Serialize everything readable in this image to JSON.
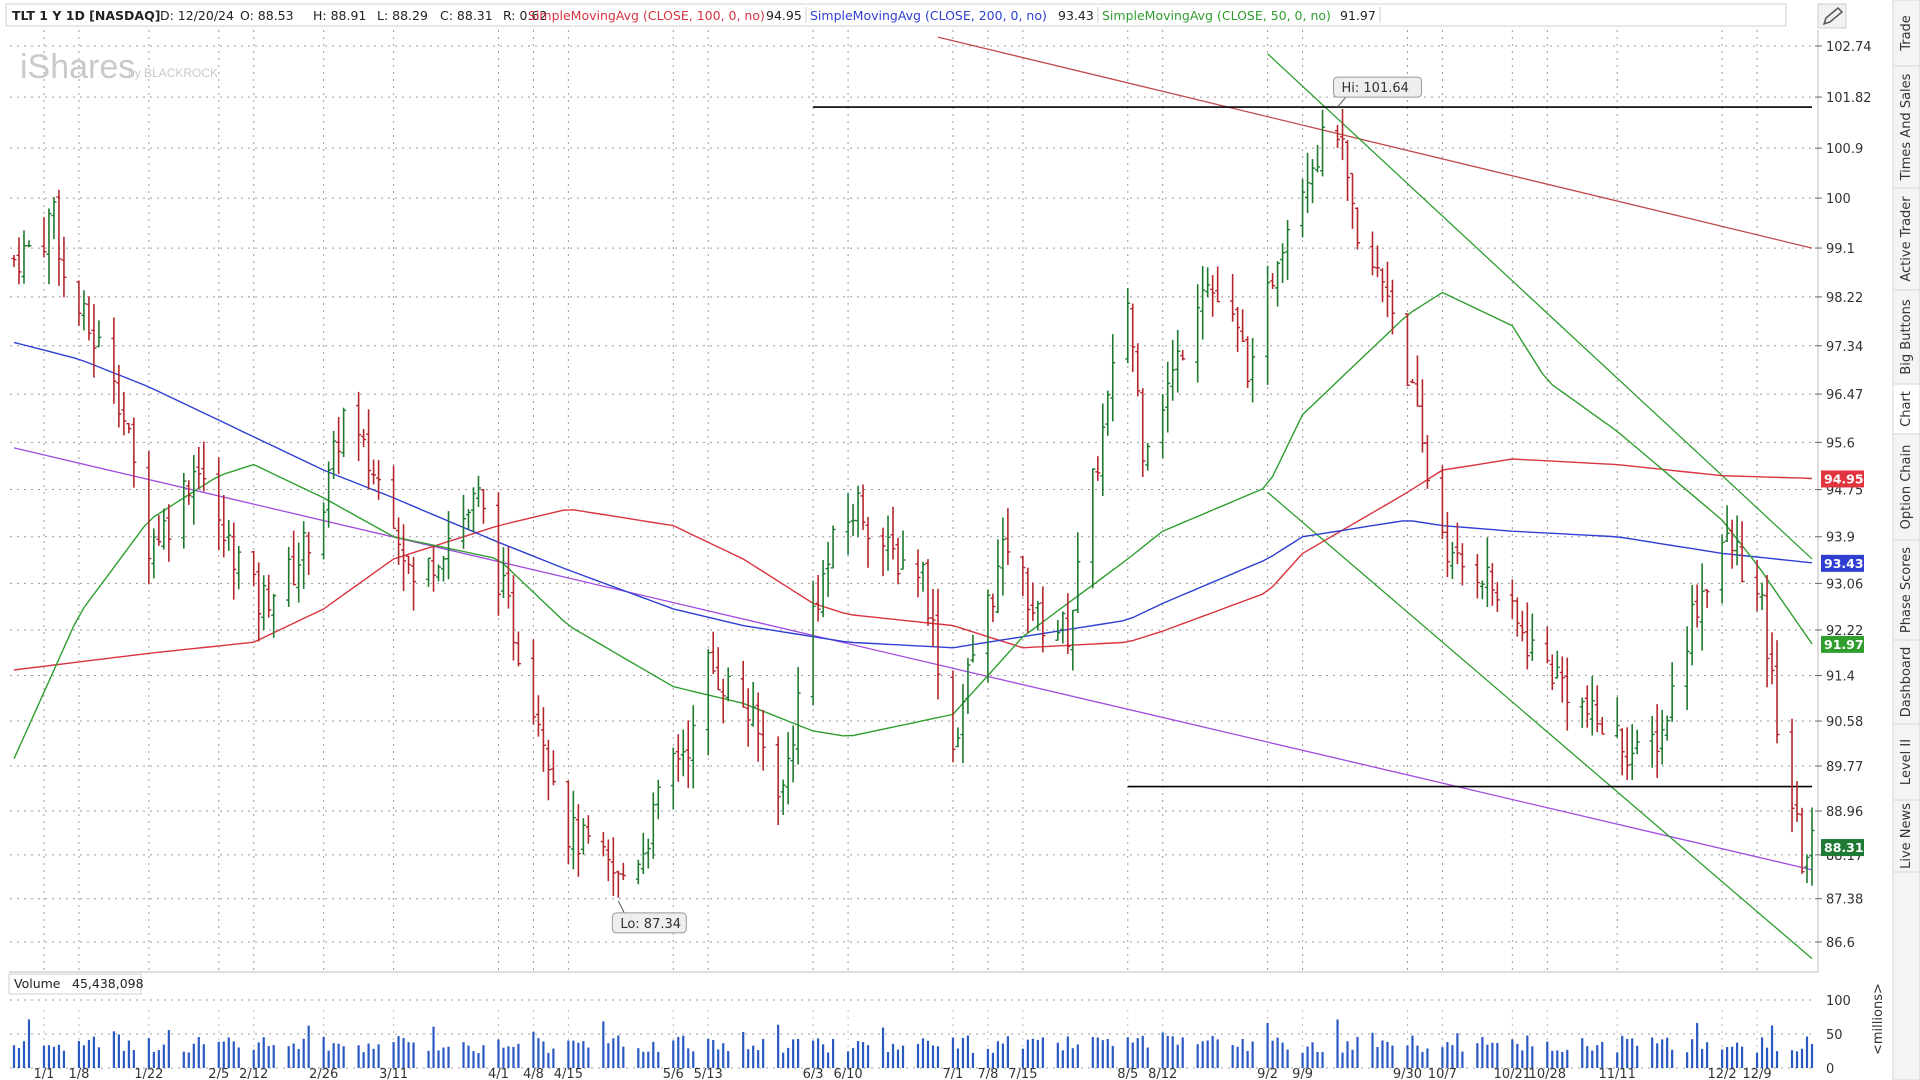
{
  "header": {
    "symbol": "TLT 1 Y 1D [NASDAQ]",
    "date": "D: 12/20/24",
    "open": "O: 88.53",
    "high": "H: 88.91",
    "low": "L: 88.29",
    "close": "C: 88.31",
    "range": "R: 0.62",
    "studies": [
      {
        "label": "SimpleMovingAvg (CLOSE, 100, 0, no)",
        "value": "94.95",
        "color": "#d9343f"
      },
      {
        "label": "SimpleMovingAvg (CLOSE, 200, 0, no)",
        "value": "93.43",
        "color": "#2e3fd1"
      },
      {
        "label": "SimpleMovingAvg (CLOSE, 50, 0, no)",
        "value": "91.97",
        "color": "#2f9e2f"
      }
    ],
    "settings_icon": "pencil-icon"
  },
  "watermark": {
    "main": "iShares",
    "sub": "by BLACKROCK"
  },
  "side_tabs": [
    "Trade",
    "Times And Sales",
    "Active Trader",
    "Big Buttons",
    "Chart",
    "Option Chain",
    "Phase Scores",
    "Dashboard",
    "Level II",
    "Live News"
  ],
  "active_tab": "Chart",
  "volume_panel": {
    "label": "Volume",
    "value": "45,438,098",
    "unit": "<millions>",
    "ticks": [
      "100",
      "50",
      "0"
    ]
  },
  "annotations": {
    "hi": "Hi: 101.64",
    "lo": "Lo: 87.34"
  },
  "chart_data": {
    "type": "ohlc",
    "title": "TLT 1 Y 1D [NASDAQ]",
    "y_ticks": [
      "102.74",
      "101.82",
      "100.9",
      "100",
      "99.1",
      "98.22",
      "97.34",
      "96.47",
      "95.6",
      "94.75",
      "93.9",
      "93.06",
      "92.22",
      "91.4",
      "90.58",
      "89.77",
      "88.96",
      "88.17",
      "87.38",
      "86.6"
    ],
    "x_ticks": [
      {
        "label": "1/1",
        "date": "2024-01-01"
      },
      {
        "label": "1/8",
        "date": "2024-01-08"
      },
      {
        "label": "1/22",
        "date": "2024-01-22"
      },
      {
        "label": "2/5",
        "date": "2024-02-05"
      },
      {
        "label": "2/12",
        "date": "2024-02-12"
      },
      {
        "label": "2/26",
        "date": "2024-02-26"
      },
      {
        "label": "3/11",
        "date": "2024-03-11"
      },
      {
        "label": "4/1",
        "date": "2024-04-01"
      },
      {
        "label": "4/8",
        "date": "2024-04-08"
      },
      {
        "label": "4/15",
        "date": "2024-04-15"
      },
      {
        "label": "5/6",
        "date": "2024-05-06"
      },
      {
        "label": "5/13",
        "date": "2024-05-13"
      },
      {
        "label": "6/3",
        "date": "2024-06-03"
      },
      {
        "label": "6/10",
        "date": "2024-06-10"
      },
      {
        "label": "7/1",
        "date": "2024-07-01"
      },
      {
        "label": "7/8",
        "date": "2024-07-08"
      },
      {
        "label": "7/15",
        "date": "2024-07-15"
      },
      {
        "label": "8/5",
        "date": "2024-08-05"
      },
      {
        "label": "8/12",
        "date": "2024-08-12"
      },
      {
        "label": "9/2",
        "date": "2024-09-02"
      },
      {
        "label": "9/9",
        "date": "2024-09-09"
      },
      {
        "label": "9/30",
        "date": "2024-09-30"
      },
      {
        "label": "10/7",
        "date": "2024-10-07"
      },
      {
        "label": "10/21",
        "date": "2024-10-21"
      },
      {
        "label": "10/28",
        "date": "2024-10-28"
      },
      {
        "label": "11/11",
        "date": "2024-11-11"
      },
      {
        "label": "12/2",
        "date": "2024-12-02"
      },
      {
        "label": "12/9",
        "date": "2024-12-09"
      }
    ],
    "date_range": [
      "2023-12-26",
      "2024-12-20"
    ],
    "ohlc_path": [
      [
        "2023-12-26",
        98.9
      ],
      [
        "2024-01-01",
        99.3
      ],
      [
        "2024-01-03",
        99.9
      ],
      [
        "2024-01-05",
        98.5
      ],
      [
        "2024-01-10",
        97.6
      ],
      [
        "2024-01-15",
        96.9
      ],
      [
        "2024-01-22",
        93.8
      ],
      [
        "2024-01-26",
        94.2
      ],
      [
        "2024-02-01",
        95.3
      ],
      [
        "2024-02-05",
        94.0
      ],
      [
        "2024-02-09",
        93.5
      ],
      [
        "2024-02-13",
        92.7
      ],
      [
        "2024-02-20",
        93.3
      ],
      [
        "2024-02-26",
        94.5
      ],
      [
        "2024-03-01",
        96.1
      ],
      [
        "2024-03-06",
        95.2
      ],
      [
        "2024-03-11",
        94.4
      ],
      [
        "2024-03-15",
        93.0
      ],
      [
        "2024-03-22",
        93.9
      ],
      [
        "2024-03-28",
        94.6
      ],
      [
        "2024-04-01",
        93.2
      ],
      [
        "2024-04-05",
        91.9
      ],
      [
        "2024-04-10",
        90.4
      ],
      [
        "2024-04-15",
        88.6
      ],
      [
        "2024-04-19",
        88.3
      ],
      [
        "2024-04-25",
        87.7
      ],
      [
        "2024-04-30",
        88.3
      ],
      [
        "2024-05-06",
        89.9
      ],
      [
        "2024-05-10",
        90.3
      ],
      [
        "2024-05-13",
        91.6
      ],
      [
        "2024-05-20",
        90.9
      ],
      [
        "2024-05-28",
        89.3
      ],
      [
        "2024-06-03",
        92.6
      ],
      [
        "2024-06-07",
        93.7
      ],
      [
        "2024-06-12",
        94.5
      ],
      [
        "2024-06-18",
        93.6
      ],
      [
        "2024-06-25",
        93.3
      ],
      [
        "2024-07-01",
        90.1
      ],
      [
        "2024-07-05",
        91.8
      ],
      [
        "2024-07-12",
        93.8
      ],
      [
        "2024-07-18",
        92.4
      ],
      [
        "2024-07-24",
        92.2
      ],
      [
        "2024-07-30",
        95.3
      ],
      [
        "2024-08-05",
        98.2
      ],
      [
        "2024-08-08",
        95.6
      ],
      [
        "2024-08-14",
        96.8
      ],
      [
        "2024-08-20",
        98.6
      ],
      [
        "2024-08-26",
        97.7
      ],
      [
        "2024-08-30",
        96.8
      ],
      [
        "2024-09-04",
        99.1
      ],
      [
        "2024-09-10",
        100.6
      ],
      [
        "2024-09-16",
        101.3
      ],
      [
        "2024-09-20",
        99.0
      ],
      [
        "2024-09-26",
        98.4
      ],
      [
        "2024-09-30",
        96.9
      ],
      [
        "2024-10-04",
        95.0
      ],
      [
        "2024-10-09",
        93.4
      ],
      [
        "2024-10-15",
        93.3
      ],
      [
        "2024-10-21",
        92.4
      ],
      [
        "2024-10-25",
        91.9
      ],
      [
        "2024-10-31",
        91.3
      ],
      [
        "2024-11-06",
        90.6
      ],
      [
        "2024-11-11",
        90.3
      ],
      [
        "2024-11-15",
        89.9
      ],
      [
        "2024-11-20",
        90.4
      ],
      [
        "2024-11-26",
        92.5
      ],
      [
        "2024-12-02",
        93.8
      ],
      [
        "2024-12-05",
        93.6
      ],
      [
        "2024-12-10",
        92.5
      ],
      [
        "2024-12-13",
        90.6
      ],
      [
        "2024-12-18",
        88.1
      ],
      [
        "2024-12-20",
        88.31
      ]
    ],
    "sma50_path": [
      [
        "2023-12-26",
        89.9
      ],
      [
        "2024-01-08",
        92.5
      ],
      [
        "2024-01-22",
        94.2
      ],
      [
        "2024-02-05",
        95.0
      ],
      [
        "2024-02-12",
        95.2
      ],
      [
        "2024-02-26",
        94.6
      ],
      [
        "2024-03-11",
        93.9
      ],
      [
        "2024-04-01",
        93.5
      ],
      [
        "2024-04-15",
        92.3
      ],
      [
        "2024-05-06",
        91.2
      ],
      [
        "2024-05-20",
        90.9
      ],
      [
        "2024-06-03",
        90.4
      ],
      [
        "2024-06-10",
        90.3
      ],
      [
        "2024-07-01",
        90.7
      ],
      [
        "2024-07-15",
        92.1
      ],
      [
        "2024-08-05",
        93.5
      ],
      [
        "2024-08-12",
        94.0
      ],
      [
        "2024-09-02",
        94.8
      ],
      [
        "2024-09-09",
        96.1
      ],
      [
        "2024-09-30",
        97.9
      ],
      [
        "2024-10-07",
        98.3
      ],
      [
        "2024-10-21",
        97.7
      ],
      [
        "2024-10-28",
        96.7
      ],
      [
        "2024-11-11",
        95.8
      ],
      [
        "2024-12-02",
        94.2
      ],
      [
        "2024-12-09",
        93.4
      ],
      [
        "2024-12-20",
        91.97
      ]
    ],
    "sma100_path": [
      [
        "2023-12-26",
        91.5
      ],
      [
        "2024-01-22",
        91.8
      ],
      [
        "2024-02-12",
        92.0
      ],
      [
        "2024-02-26",
        92.6
      ],
      [
        "2024-03-11",
        93.5
      ],
      [
        "2024-04-01",
        94.1
      ],
      [
        "2024-04-15",
        94.4
      ],
      [
        "2024-05-06",
        94.1
      ],
      [
        "2024-05-20",
        93.5
      ],
      [
        "2024-06-03",
        92.7
      ],
      [
        "2024-06-10",
        92.5
      ],
      [
        "2024-07-01",
        92.3
      ],
      [
        "2024-07-15",
        91.9
      ],
      [
        "2024-08-05",
        92.0
      ],
      [
        "2024-08-12",
        92.2
      ],
      [
        "2024-09-02",
        92.9
      ],
      [
        "2024-09-09",
        93.6
      ],
      [
        "2024-09-30",
        94.7
      ],
      [
        "2024-10-07",
        95.1
      ],
      [
        "2024-10-21",
        95.3
      ],
      [
        "2024-11-11",
        95.2
      ],
      [
        "2024-12-02",
        95.0
      ],
      [
        "2024-12-20",
        94.95
      ]
    ],
    "sma200_path": [
      [
        "2023-12-26",
        97.4
      ],
      [
        "2024-01-08",
        97.1
      ],
      [
        "2024-01-22",
        96.6
      ],
      [
        "2024-02-05",
        96.0
      ],
      [
        "2024-02-26",
        95.1
      ],
      [
        "2024-03-11",
        94.6
      ],
      [
        "2024-04-01",
        93.8
      ],
      [
        "2024-04-15",
        93.3
      ],
      [
        "2024-05-06",
        92.6
      ],
      [
        "2024-05-20",
        92.3
      ],
      [
        "2024-06-03",
        92.1
      ],
      [
        "2024-06-10",
        92.0
      ],
      [
        "2024-07-01",
        91.9
      ],
      [
        "2024-07-15",
        92.1
      ],
      [
        "2024-08-05",
        92.4
      ],
      [
        "2024-08-12",
        92.7
      ],
      [
        "2024-09-02",
        93.5
      ],
      [
        "2024-09-09",
        93.9
      ],
      [
        "2024-09-30",
        94.2
      ],
      [
        "2024-10-07",
        94.1
      ],
      [
        "2024-10-21",
        94.0
      ],
      [
        "2024-11-11",
        93.9
      ],
      [
        "2024-12-02",
        93.6
      ],
      [
        "2024-12-20",
        93.43
      ]
    ],
    "trendlines": [
      {
        "name": "red-downtrend",
        "color": "#c24a4a",
        "from": [
          "2024-06-28",
          102.9
        ],
        "to": [
          "2024-12-20",
          99.1
        ]
      },
      {
        "name": "purple-downtrend",
        "color": "#a24be0",
        "from": [
          "2023-12-26",
          95.5
        ],
        "to": [
          "2024-12-20",
          87.9
        ]
      },
      {
        "name": "green-channel-upper",
        "color": "#2f9e2f",
        "from": [
          "2024-09-02",
          102.6
        ],
        "to": [
          "2024-12-20",
          93.5
        ]
      },
      {
        "name": "green-channel-lower",
        "color": "#2f9e2f",
        "from": [
          "2024-09-02",
          94.7
        ],
        "to": [
          "2024-12-20",
          86.3
        ]
      },
      {
        "name": "resistance-line",
        "color": "#000000",
        "from": [
          "2024-06-03",
          101.64
        ],
        "to": [
          "2024-12-20",
          101.64
        ]
      },
      {
        "name": "support-line",
        "color": "#000000",
        "from": [
          "2024-08-05",
          89.4
        ],
        "to": [
          "2024-12-20",
          89.4
        ]
      }
    ],
    "price_badges": [
      {
        "value": "94.95",
        "color": "#e0343f"
      },
      {
        "value": "93.43",
        "color": "#2e3fd1"
      },
      {
        "value": "91.97",
        "color": "#2f9e2f"
      },
      {
        "value": "88.31",
        "color": "#1f7a33"
      }
    ],
    "hi": 101.64,
    "lo": 87.34,
    "volume_ylim": [
      0,
      100
    ]
  }
}
